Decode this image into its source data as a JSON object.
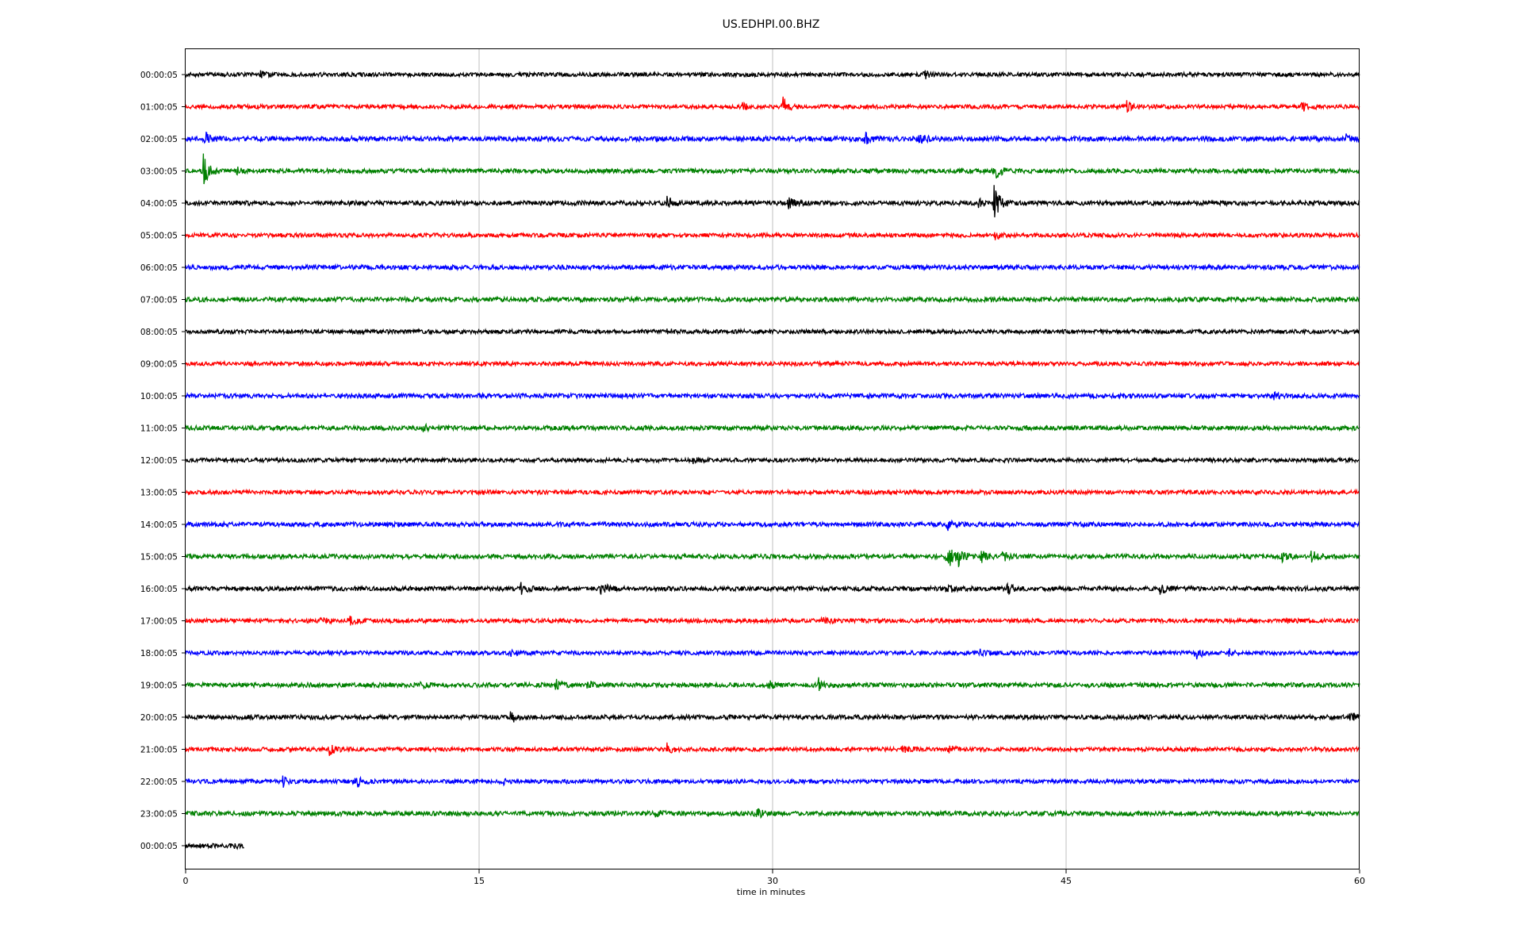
{
  "chart_data": {
    "type": "line",
    "title": "US.EDHPI.00.BHZ",
    "xlabel": "time in minutes",
    "ylabel": "",
    "xlim": [
      0,
      60
    ],
    "xticks": [
      0,
      15,
      30,
      45,
      60
    ],
    "grid": "vertical",
    "row_labels": [
      "00:00:05",
      "01:00:05",
      "02:00:05",
      "03:00:05",
      "04:00:05",
      "05:00:05",
      "06:00:05",
      "07:00:05",
      "08:00:05",
      "09:00:05",
      "10:00:05",
      "11:00:05",
      "12:00:05",
      "13:00:05",
      "14:00:05",
      "15:00:05",
      "16:00:05",
      "17:00:05",
      "18:00:05",
      "19:00:05",
      "20:00:05",
      "21:00:05",
      "22:00:05",
      "23:00:05",
      "00:00:05"
    ],
    "colors": [
      "#000000",
      "#ff0000",
      "#0000ff",
      "#008000"
    ],
    "traces": [
      {
        "end": 60,
        "noise": 0.18,
        "events": [
          [
            3.8,
            0.35
          ],
          [
            37.7,
            0.45
          ]
        ]
      },
      {
        "end": 60,
        "noise": 0.18,
        "events": [
          [
            28.4,
            0.4
          ],
          [
            30.5,
            0.9
          ],
          [
            48.1,
            0.45
          ],
          [
            57,
            0.6
          ]
        ]
      },
      {
        "end": 60,
        "noise": 0.22,
        "events": [
          [
            1,
            0.5
          ],
          [
            34.7,
            0.5
          ],
          [
            37.5,
            0.45
          ],
          [
            59.3,
            0.3
          ]
        ]
      },
      {
        "end": 60,
        "noise": 0.2,
        "events": [
          [
            0.9,
            1.8
          ],
          [
            2.6,
            0.4
          ],
          [
            41.3,
            1.1
          ]
        ]
      },
      {
        "end": 60,
        "noise": 0.2,
        "events": [
          [
            24.6,
            0.6
          ],
          [
            30.8,
            0.6
          ],
          [
            40.5,
            0.5
          ],
          [
            41.3,
            1.9
          ]
        ]
      },
      {
        "end": 60,
        "noise": 0.18,
        "events": [
          [
            41.3,
            0.5
          ]
        ]
      },
      {
        "end": 60,
        "noise": 0.2,
        "events": []
      },
      {
        "end": 60,
        "noise": 0.2,
        "events": []
      },
      {
        "end": 60,
        "noise": 0.18,
        "events": [
          [
            24.6,
            0.2
          ]
        ]
      },
      {
        "end": 60,
        "noise": 0.18,
        "events": []
      },
      {
        "end": 60,
        "noise": 0.2,
        "events": [
          [
            55.6,
            0.25
          ]
        ]
      },
      {
        "end": 60,
        "noise": 0.2,
        "events": [
          [
            12.1,
            0.3
          ]
        ]
      },
      {
        "end": 60,
        "noise": 0.18,
        "events": [
          [
            25.9,
            0.25
          ]
        ]
      },
      {
        "end": 60,
        "noise": 0.18,
        "events": [
          [
            15.1,
            0.2
          ]
        ]
      },
      {
        "end": 60,
        "noise": 0.2,
        "events": [
          [
            38.9,
            0.6
          ]
        ]
      },
      {
        "end": 60,
        "noise": 0.2,
        "events": [
          [
            38.9,
            1.4
          ],
          [
            39.5,
            0.7
          ],
          [
            40.6,
            0.6
          ],
          [
            41.7,
            0.5
          ],
          [
            56,
            0.5
          ],
          [
            57.5,
            0.6
          ]
        ]
      },
      {
        "end": 60,
        "noise": 0.2,
        "events": [
          [
            17.1,
            0.6
          ],
          [
            21.2,
            0.7
          ],
          [
            38.9,
            0.4
          ],
          [
            42,
            0.5
          ],
          [
            49.8,
            0.45
          ]
        ]
      },
      {
        "end": 60,
        "noise": 0.18,
        "events": [
          [
            6.8,
            0.45
          ],
          [
            8.3,
            0.5
          ],
          [
            32.5,
            0.4
          ],
          [
            56.3,
            0.25
          ]
        ]
      },
      {
        "end": 60,
        "noise": 0.18,
        "events": [
          [
            16.6,
            0.25
          ],
          [
            40.6,
            0.3
          ],
          [
            51.6,
            0.6
          ],
          [
            53.3,
            0.3
          ]
        ]
      },
      {
        "end": 60,
        "noise": 0.2,
        "events": [
          [
            12,
            0.35
          ],
          [
            18.9,
            0.45
          ],
          [
            20.5,
            0.45
          ],
          [
            29.8,
            0.4
          ],
          [
            32.3,
            0.65
          ]
        ]
      },
      {
        "end": 60,
        "noise": 0.2,
        "events": [
          [
            16.6,
            0.55
          ],
          [
            59.5,
            0.55
          ]
        ]
      },
      {
        "end": 60,
        "noise": 0.18,
        "events": [
          [
            7.3,
            0.65
          ],
          [
            24.6,
            0.5
          ],
          [
            36.6,
            0.3
          ],
          [
            39,
            0.35
          ]
        ]
      },
      {
        "end": 60,
        "noise": 0.18,
        "events": [
          [
            4.9,
            0.55
          ],
          [
            8.7,
            0.55
          ],
          [
            16.2,
            0.2
          ]
        ]
      },
      {
        "end": 60,
        "noise": 0.2,
        "events": [
          [
            24,
            0.3
          ],
          [
            29.1,
            0.6
          ]
        ]
      },
      {
        "end": 3,
        "noise": 0.2,
        "events": [
          [
            2.5,
            0.3
          ]
        ]
      }
    ]
  }
}
